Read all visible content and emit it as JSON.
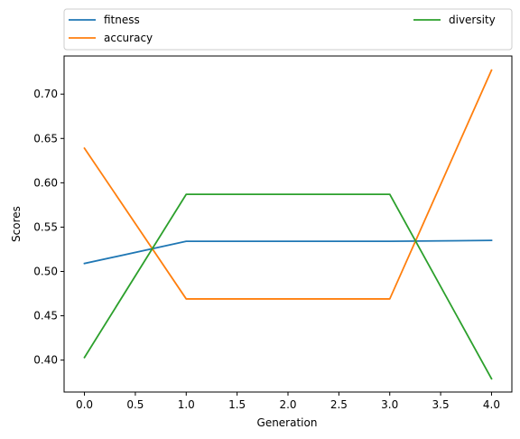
{
  "chart_data": {
    "type": "line",
    "title": "",
    "xlabel": "Generation",
    "ylabel": "Scores",
    "x": [
      0,
      1,
      2,
      3,
      4
    ],
    "xlim": [
      -0.2,
      4.2
    ],
    "ylim": [
      0.364,
      0.743
    ],
    "xticks": [
      0.0,
      0.5,
      1.0,
      1.5,
      2.0,
      2.5,
      3.0,
      3.5,
      4.0
    ],
    "xtick_labels": [
      "0.0",
      "0.5",
      "1.0",
      "1.5",
      "2.0",
      "2.5",
      "3.0",
      "3.5",
      "4.0"
    ],
    "yticks": [
      0.4,
      0.45,
      0.5,
      0.55,
      0.6,
      0.65,
      0.7
    ],
    "ytick_labels": [
      "0.40",
      "0.45",
      "0.50",
      "0.55",
      "0.60",
      "0.65",
      "0.70"
    ],
    "grid": false,
    "legend_placement": "above plot, top",
    "series": [
      {
        "name": "fitness",
        "color": "#1f77b4",
        "values": [
          0.509,
          0.534,
          0.534,
          0.534,
          0.535
        ]
      },
      {
        "name": "accuracy",
        "color": "#ff7f0e",
        "values": [
          0.639,
          0.469,
          0.469,
          0.469,
          0.727
        ]
      },
      {
        "name": "diversity",
        "color": "#2ca02c",
        "values": [
          0.403,
          0.587,
          0.587,
          0.587,
          0.379
        ]
      }
    ]
  }
}
